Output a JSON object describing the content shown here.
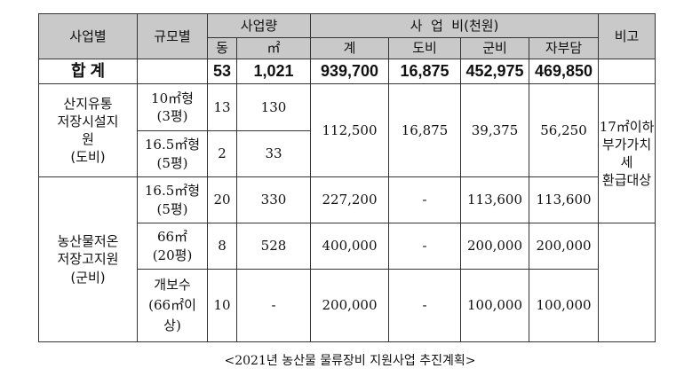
{
  "headers": {
    "category": "사업별",
    "scale": "규모별",
    "quantity": "사업량",
    "qty_count": "동",
    "qty_area": "㎡",
    "cost": "사  업  비(천원)",
    "cost_total": "계",
    "cost_province": "도비",
    "cost_county": "군비",
    "cost_self": "자부담",
    "note": "비고"
  },
  "total": {
    "label": "합 계",
    "count": "53",
    "area": "1,021",
    "sum": "939,700",
    "province": "16,875",
    "county": "452,975",
    "self": "469,850"
  },
  "group1": {
    "name_lines": [
      "산지유통",
      "저장시설지",
      "원",
      "(도비)"
    ],
    "rows": [
      {
        "scale_lines": [
          "10㎡형",
          "(3평)"
        ],
        "count": "13",
        "area": "130"
      },
      {
        "scale_lines": [
          "16.5㎡형",
          "(5평)"
        ],
        "count": "2",
        "area": "33"
      }
    ],
    "sum": "112,500",
    "province": "16,875",
    "county": "39,375",
    "self": "56,250"
  },
  "group2": {
    "name_lines": [
      "농산물저온",
      "저장고지원",
      "(군비)"
    ],
    "rows": [
      {
        "scale_lines": [
          "16.5㎡형",
          "(5평)"
        ],
        "count": "20",
        "area": "330",
        "sum": "227,200",
        "province": "-",
        "county": "113,600",
        "self": "113,600"
      },
      {
        "scale_lines": [
          "66㎡",
          "(20평)"
        ],
        "count": "8",
        "area": "528",
        "sum": "400,000",
        "province": "-",
        "county": "200,000",
        "self": "200,000"
      },
      {
        "scale_lines": [
          "개보수",
          "(66㎡이",
          "상)"
        ],
        "count": "10",
        "area": "-",
        "sum": "200,000",
        "province": "-",
        "county": "100,000",
        "self": "100,000"
      }
    ]
  },
  "note_lines": [
    "17㎡이하",
    "부가가치",
    "세",
    "환급대상"
  ],
  "caption": "<2021년 농산물 물류장비 지원사업 추진계획>"
}
